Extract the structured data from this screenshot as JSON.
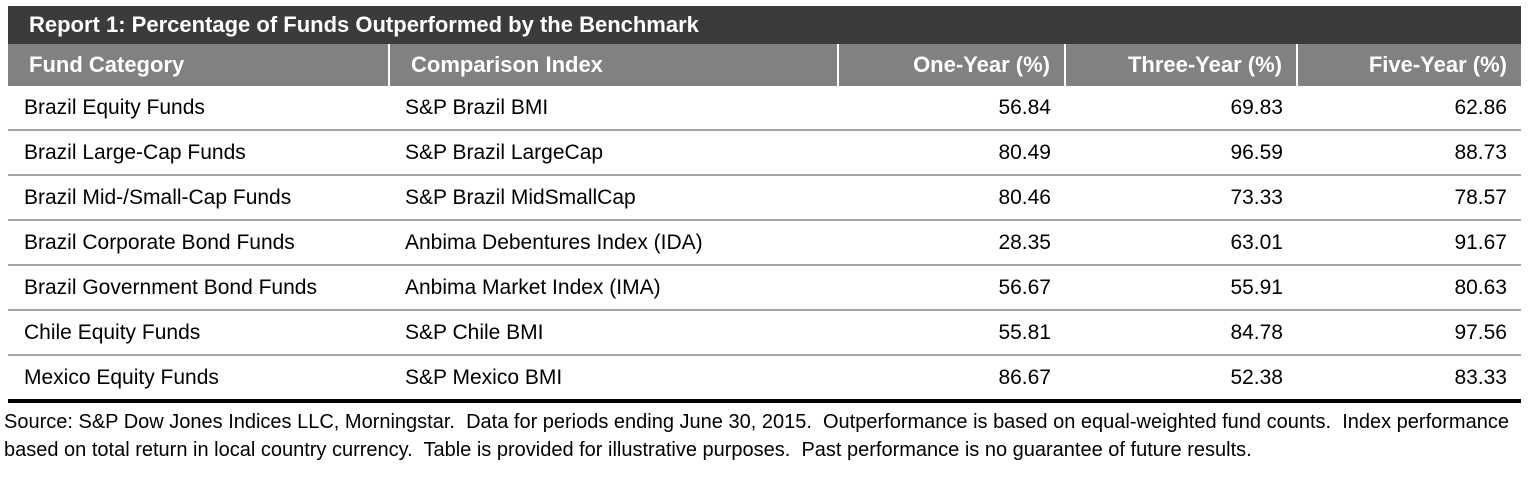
{
  "report": {
    "title": "Report 1: Percentage of Funds Outperformed by the Benchmark",
    "columns": {
      "fund_category": "Fund Category",
      "comparison_index": "Comparison Index",
      "one_year": "One-Year (%)",
      "three_year": "Three-Year (%)",
      "five_year": "Five-Year (%)"
    },
    "rows": [
      {
        "fund_category": "Brazil Equity Funds",
        "comparison_index": "S&P Brazil BMI",
        "one_year": "56.84",
        "three_year": "69.83",
        "five_year": "62.86"
      },
      {
        "fund_category": "Brazil Large-Cap Funds",
        "comparison_index": "S&P Brazil LargeCap",
        "one_year": "80.49",
        "three_year": "96.59",
        "five_year": "88.73"
      },
      {
        "fund_category": "Brazil Mid-/Small-Cap Funds",
        "comparison_index": "S&P Brazil MidSmallCap",
        "one_year": "80.46",
        "three_year": "73.33",
        "five_year": "78.57"
      },
      {
        "fund_category": "Brazil Corporate Bond Funds",
        "comparison_index": "Anbima Debentures Index (IDA)",
        "one_year": "28.35",
        "three_year": "63.01",
        "five_year": "91.67"
      },
      {
        "fund_category": "Brazil Government Bond Funds",
        "comparison_index": "Anbima Market Index (IMA)",
        "one_year": "56.67",
        "three_year": "55.91",
        "five_year": "80.63"
      },
      {
        "fund_category": "Chile Equity Funds",
        "comparison_index": "S&P Chile BMI",
        "one_year": "55.81",
        "three_year": "84.78",
        "five_year": "97.56"
      },
      {
        "fund_category": "Mexico Equity Funds",
        "comparison_index": "S&P Mexico BMI",
        "one_year": "86.67",
        "three_year": "52.38",
        "five_year": "83.33"
      }
    ],
    "footnote": "Source: S&P Dow Jones Indices LLC, Morningstar.  Data for periods ending June 30, 2015.  Outperformance is based on equal-weighted fund counts.  Index performance based on total return in local country currency.  Table is provided for illustrative purposes.  Past performance is no guarantee of future results."
  },
  "colors": {
    "title_bar_bg": "#3b3b3b",
    "header_bg": "#818181",
    "header_text": "#ffffff",
    "body_text": "#000000",
    "row_divider": "#a6a6a6",
    "table_bottom_border": "#000000"
  },
  "chart_data": {
    "type": "table",
    "title": "Report 1: Percentage of Funds Outperformed by the Benchmark",
    "columns": [
      "Fund Category",
      "Comparison Index",
      "One-Year (%)",
      "Three-Year (%)",
      "Five-Year (%)"
    ],
    "rows": [
      [
        "Brazil Equity Funds",
        "S&P Brazil BMI",
        56.84,
        69.83,
        62.86
      ],
      [
        "Brazil Large-Cap Funds",
        "S&P Brazil LargeCap",
        80.49,
        96.59,
        88.73
      ],
      [
        "Brazil Mid-/Small-Cap Funds",
        "S&P Brazil MidSmallCap",
        80.46,
        73.33,
        78.57
      ],
      [
        "Brazil Corporate Bond Funds",
        "Anbima Debentures Index (IDA)",
        28.35,
        63.01,
        91.67
      ],
      [
        "Brazil Government Bond Funds",
        "Anbima Market Index (IMA)",
        56.67,
        55.91,
        80.63
      ],
      [
        "Chile Equity Funds",
        "S&P Chile BMI",
        55.81,
        84.78,
        97.56
      ],
      [
        "Mexico Equity Funds",
        "S&P Mexico BMI",
        86.67,
        52.38,
        83.33
      ]
    ]
  }
}
